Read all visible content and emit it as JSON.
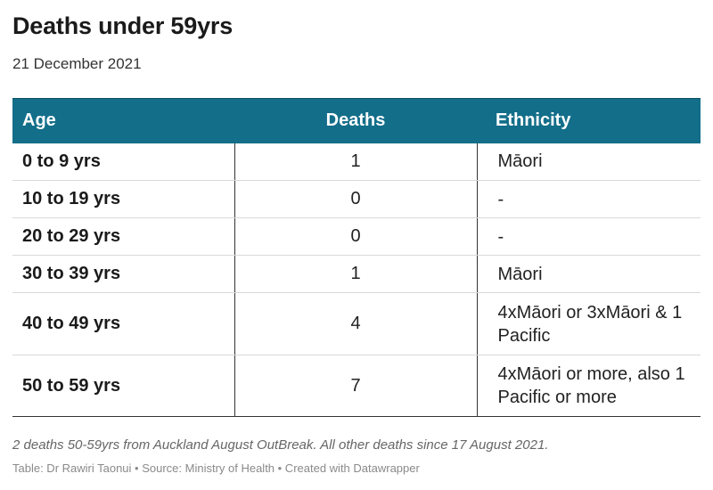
{
  "title": "Deaths under 59yrs",
  "subtitle": "21 December 2021",
  "chart_data": {
    "type": "table",
    "columns": [
      "Age",
      "Deaths",
      "Ethnicity"
    ],
    "rows": [
      {
        "age": "0 to 9 yrs",
        "deaths": 1,
        "ethnicity": "Māori"
      },
      {
        "age": "10 to 19 yrs",
        "deaths": 0,
        "ethnicity": "-"
      },
      {
        "age": "20 to 29 yrs",
        "deaths": 0,
        "ethnicity": "-"
      },
      {
        "age": "30 to 39 yrs",
        "deaths": 1,
        "ethnicity": "Māori"
      },
      {
        "age": "40 to 49 yrs",
        "deaths": 4,
        "ethnicity": "4xMāori or 3xMāori & 1 Pacific"
      },
      {
        "age": "50 to 59 yrs",
        "deaths": 7,
        "ethnicity": "4xMāori or more, also 1 Pacific or more"
      }
    ]
  },
  "notes": "2 deaths 50-59yrs from Auckland August OutBreak. All other deaths since 17 August 2021.",
  "source_line": "Table: Dr Rawiri Taonui • Source: Ministry of Health • Created with Datawrapper",
  "colors": {
    "header_bg": "#136e8a",
    "header_text": "#ffffff"
  }
}
